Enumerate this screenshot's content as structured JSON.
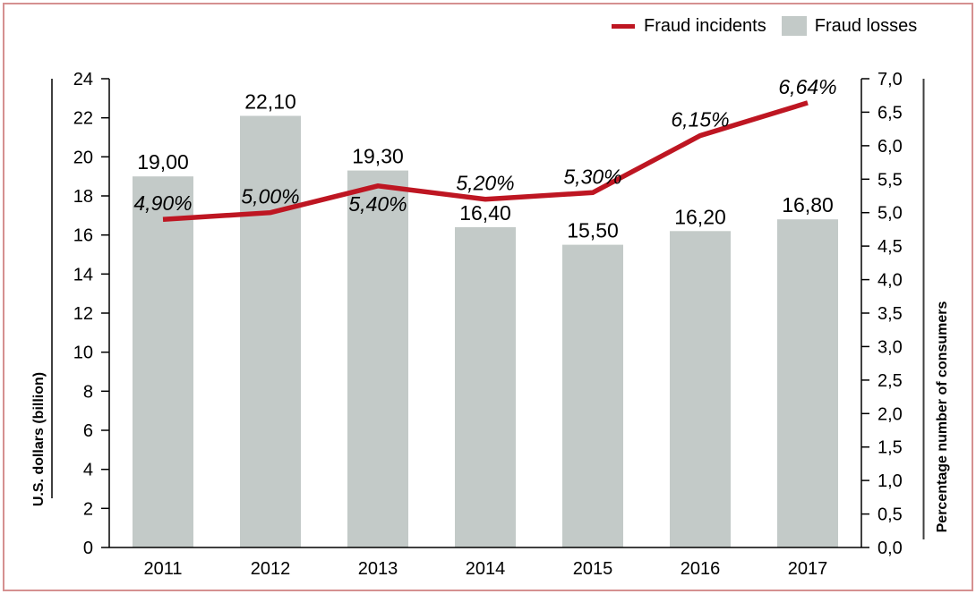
{
  "frame": {
    "border_color": "#d59090"
  },
  "legend": {
    "position": "top-right",
    "items": [
      {
        "label": "Fraud incidents",
        "swatch": "line",
        "color": "#be1622"
      },
      {
        "label": "Fraud losses",
        "swatch": "box",
        "color": "#c3cac8"
      }
    ]
  },
  "chart_data": {
    "type": "combo (bar + line, dual axis)",
    "grid": false,
    "legend_position": "top-right",
    "categories": [
      "2011",
      "2012",
      "2013",
      "2014",
      "2015",
      "2016",
      "2017"
    ],
    "series": [
      {
        "name": "Fraud losses",
        "type": "bar",
        "axis": "left",
        "color": "#c3cac8",
        "values": [
          19.0,
          22.1,
          19.3,
          16.4,
          15.5,
          16.2,
          16.8
        ],
        "labels": [
          "19,00",
          "22,10",
          "19,30",
          "16,40",
          "15,50",
          "16,20",
          "16,80"
        ]
      },
      {
        "name": "Fraud incidents",
        "type": "line",
        "axis": "right",
        "color": "#be1622",
        "values": [
          4.9,
          5.0,
          5.4,
          5.2,
          5.3,
          6.15,
          6.64
        ],
        "labels": [
          "4,90%",
          "5,00%",
          "5,40%",
          "5,20%",
          "5,30%",
          "6,15%",
          "6,64%"
        ],
        "label_side": [
          "above",
          "above",
          "below",
          "above",
          "above",
          "above",
          "above"
        ]
      }
    ],
    "left_axis": {
      "title": "U.S. dollars (billion)",
      "min": 0,
      "max": 24,
      "step": 2,
      "tick_labels": [
        "0",
        "2",
        "4",
        "6",
        "8",
        "10",
        "12",
        "14",
        "16",
        "18",
        "20",
        "22",
        "24"
      ]
    },
    "right_axis": {
      "title": "Percentage number of consumers",
      "min": 0,
      "max": 7,
      "step": 0.5,
      "tick_labels": [
        "0,0",
        "0,5",
        "1,0",
        "1,5",
        "2,0",
        "2,5",
        "3,0",
        "3,5",
        "4,0",
        "4,5",
        "5,0",
        "5,5",
        "6,0",
        "6,5",
        "7,0"
      ]
    }
  }
}
